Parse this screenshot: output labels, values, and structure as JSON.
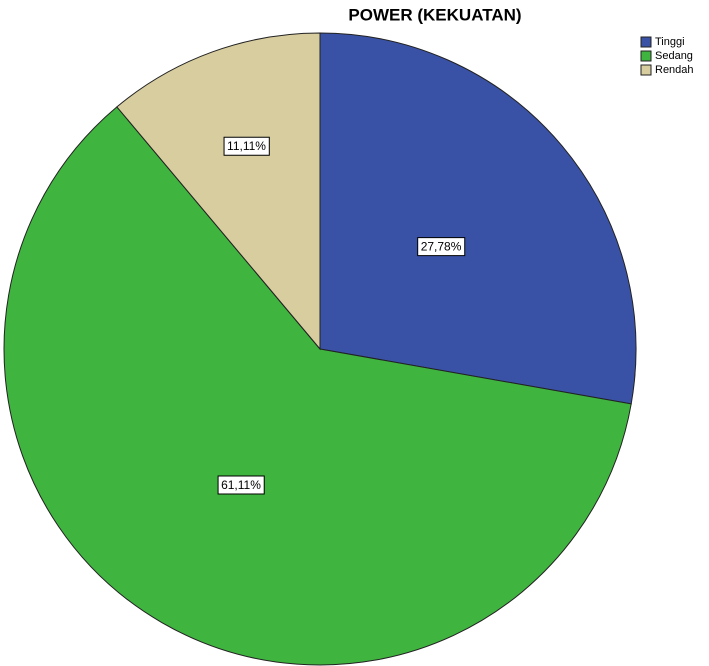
{
  "chart_data": {
    "type": "pie",
    "title": "POWER (KEKUATAN)",
    "categories": [
      "Tinggi",
      "Sedang",
      "Rendah"
    ],
    "values": [
      27.78,
      61.11,
      11.11
    ],
    "value_labels": [
      "27,78%",
      "61,11%",
      "11,11%"
    ],
    "colors": [
      "#3a52a6",
      "#3fb53f",
      "#d7cd9f"
    ],
    "legend": "top-right"
  }
}
